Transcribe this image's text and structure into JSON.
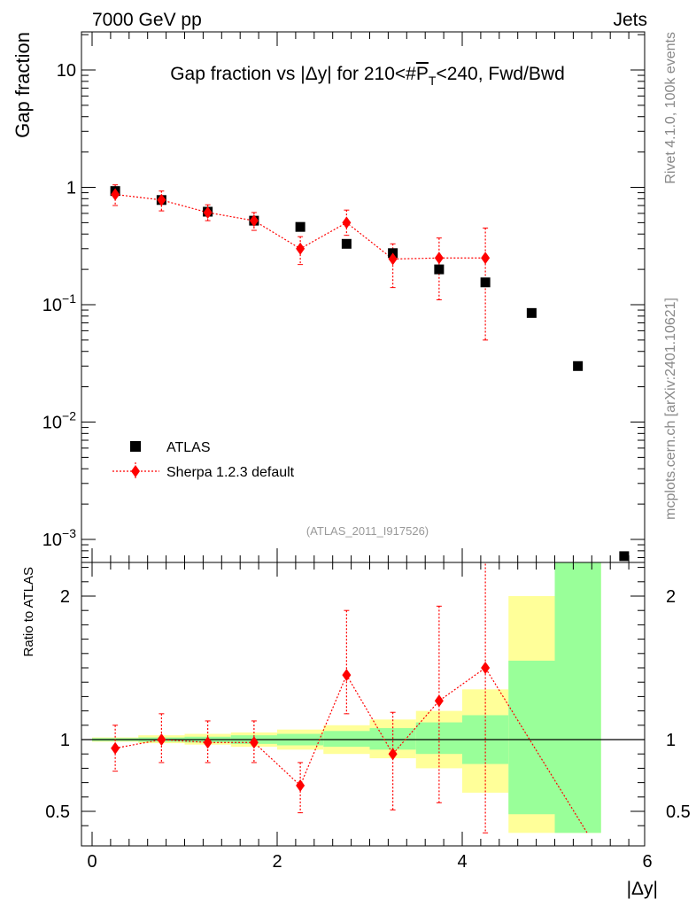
{
  "header": {
    "energy_label": "7000 GeV pp",
    "process_label": "Jets",
    "rivet_label": "Rivet 4.1.0,  100k events",
    "mcplots_label": "mcplots.cern.ch [arXiv:2401.10621]",
    "analysis_label": "(ATLAS_2011_I917526)"
  },
  "colors": {
    "data": "#000000",
    "mc": "#ff0000",
    "band_inner": "#99ff99",
    "band_outer": "#ffff99"
  },
  "chart_data": [
    {
      "type": "scatter",
      "name": "main",
      "title": "Gap fraction vs |Δy| for 210<#̅P̅_T<240, Fwd/Bwd",
      "title_parts": {
        "pre": "Gap fraction vs |Δy| for 210<#",
        "p": "P",
        "t": "T",
        "post": "<240, Fwd/Bwd"
      },
      "ylabel": "Gap fraction",
      "yscale": "log",
      "ylim": [
        0.00075,
        20
      ],
      "y_ticks": [
        {
          "value": 0.001,
          "base": "10",
          "exp": "−3"
        },
        {
          "value": 0.01,
          "base": "10",
          "exp": "−2"
        },
        {
          "value": 0.1,
          "base": "10",
          "exp": "−1"
        },
        {
          "value": 1,
          "base": "1",
          "exp": ""
        },
        {
          "value": 10,
          "base": "10",
          "exp": ""
        }
      ],
      "legend": {
        "position": "bottom-left",
        "entries": [
          "ATLAS",
          "Sherpa 1.2.3 default"
        ]
      },
      "series": [
        {
          "name": "ATLAS",
          "x": [
            0.25,
            0.75,
            1.25,
            1.75,
            2.25,
            2.75,
            3.25,
            3.75,
            4.25,
            4.75,
            5.25,
            5.75
          ],
          "y": [
            0.93,
            0.78,
            0.62,
            0.52,
            0.46,
            0.33,
            0.275,
            0.2,
            0.155,
            0.085,
            0.03,
            0.00072
          ]
        },
        {
          "name": "Sherpa 1.2.3 default",
          "x": [
            0.25,
            0.75,
            1.25,
            1.75,
            2.25,
            2.75,
            3.25,
            3.75,
            4.25
          ],
          "y": [
            0.87,
            0.78,
            0.61,
            0.52,
            0.3,
            0.5,
            0.245,
            0.25,
            0.25
          ],
          "y_low": [
            0.7,
            0.63,
            0.52,
            0.43,
            0.22,
            0.39,
            0.14,
            0.11,
            0.05
          ],
          "y_high": [
            1.05,
            0.93,
            0.71,
            0.61,
            0.38,
            0.64,
            0.33,
            0.37,
            0.45
          ]
        }
      ]
    },
    {
      "type": "scatter",
      "name": "ratio",
      "xlabel": "|Δy|",
      "ylabel": "Ratio to ATLAS",
      "ylim": [
        0.35,
        2.25
      ],
      "xlim": [
        -0.1,
        6.1
      ],
      "y_ticks": [
        0.5,
        1,
        2
      ],
      "x_ticks": [
        0,
        2,
        4,
        6
      ],
      "bins": [
        {
          "x0": 0.0,
          "x1": 0.5,
          "in_lo": 0.99,
          "in_hi": 1.01,
          "out_lo": 0.985,
          "out_hi": 1.015
        },
        {
          "x0": 0.5,
          "x1": 1.0,
          "in_lo": 0.985,
          "in_hi": 1.015,
          "out_lo": 0.975,
          "out_hi": 1.03
        },
        {
          "x0": 1.0,
          "x1": 1.5,
          "in_lo": 0.98,
          "in_hi": 1.02,
          "out_lo": 0.965,
          "out_hi": 1.04
        },
        {
          "x0": 1.5,
          "x1": 2.0,
          "in_lo": 0.97,
          "in_hi": 1.03,
          "out_lo": 0.95,
          "out_hi": 1.05
        },
        {
          "x0": 2.0,
          "x1": 2.5,
          "in_lo": 0.96,
          "in_hi": 1.04,
          "out_lo": 0.93,
          "out_hi": 1.07
        },
        {
          "x0": 2.5,
          "x1": 3.0,
          "in_lo": 0.95,
          "in_hi": 1.06,
          "out_lo": 0.9,
          "out_hi": 1.1
        },
        {
          "x0": 3.0,
          "x1": 3.5,
          "in_lo": 0.93,
          "in_hi": 1.08,
          "out_lo": 0.87,
          "out_hi": 1.14
        },
        {
          "x0": 3.5,
          "x1": 4.0,
          "in_lo": 0.9,
          "in_hi": 1.12,
          "out_lo": 0.8,
          "out_hi": 1.2
        },
        {
          "x0": 4.0,
          "x1": 4.5,
          "in_lo": 0.83,
          "in_hi": 1.17,
          "out_lo": 0.63,
          "out_hi": 1.35
        },
        {
          "x0": 4.5,
          "x1": 5.0,
          "in_lo": 0.48,
          "in_hi": 1.55,
          "out_lo": 0.35,
          "out_hi": 2.0
        },
        {
          "x0": 5.0,
          "x1": 5.5,
          "in_lo": 0.35,
          "in_hi": 2.25,
          "out_lo": 0.35,
          "out_hi": 2.25
        }
      ],
      "unity_line": 1,
      "series": [
        {
          "name": "Sherpa 1.2.3 default",
          "x": [
            0.25,
            0.75,
            1.25,
            1.75,
            2.25,
            2.75,
            3.25,
            3.75,
            4.25
          ],
          "y": [
            0.94,
            1.0,
            0.98,
            0.98,
            0.68,
            1.45,
            0.9,
            1.27,
            1.5
          ],
          "y_low": [
            0.78,
            0.84,
            0.84,
            0.84,
            0.49,
            1.18,
            0.51,
            0.56,
            0.35
          ],
          "y_high": [
            1.1,
            1.18,
            1.13,
            1.13,
            0.84,
            1.9,
            1.19,
            1.93,
            2.25
          ],
          "line_end": {
            "x": 5.35,
            "y": 0.35
          }
        }
      ]
    }
  ]
}
